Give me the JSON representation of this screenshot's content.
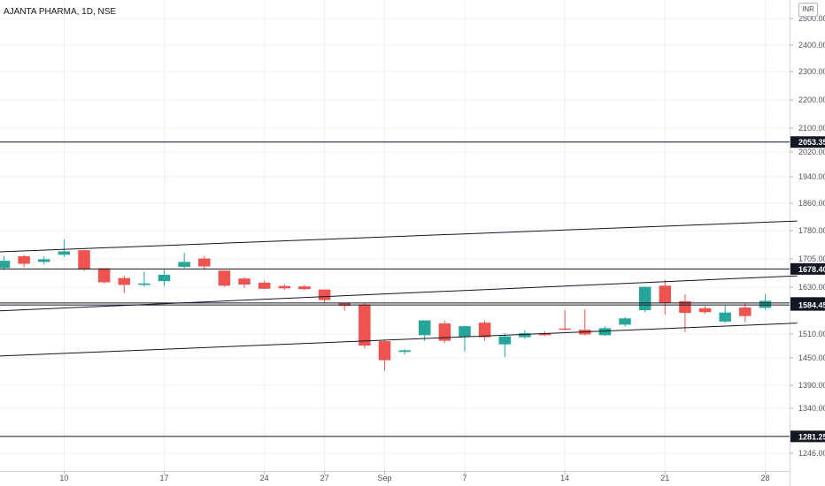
{
  "header": {
    "title": "AJANTA PHARMA, 1D, NSE",
    "currency": "INR"
  },
  "colors": {
    "up": "#26a69a",
    "down": "#ef5350",
    "grid": "#eef0f3",
    "line": "#131722"
  },
  "chart_data": {
    "type": "candlestick",
    "title": "AJANTA PHARMA, 1D, NSE",
    "currency": "INR",
    "ylim": [
      1215,
      2545
    ],
    "y_ticks": [
      2500,
      2400,
      2300,
      2200,
      2100,
      2020,
      1940,
      1860,
      1780,
      1705,
      1630,
      1510,
      1450,
      1390,
      1340,
      1246
    ],
    "y_tick_labels": [
      "2500.00",
      "2400.00",
      "2300.00",
      "2200.00",
      "2100.00",
      "2020.00",
      "1940.00",
      "1860.00",
      "1780.00",
      "1705.00",
      "1630.00",
      "1510.00",
      "1450.00",
      "1390.00",
      "1340.00",
      "1246.00"
    ],
    "x_ticks": [
      {
        "i": 3,
        "label": "10"
      },
      {
        "i": 8,
        "label": "17"
      },
      {
        "i": 13,
        "label": "24"
      },
      {
        "i": 16,
        "label": "27"
      },
      {
        "i": 19,
        "label": "Sep"
      },
      {
        "i": 23,
        "label": "7"
      },
      {
        "i": 28,
        "label": "14"
      },
      {
        "i": 33,
        "label": "21"
      },
      {
        "i": 38,
        "label": "28"
      }
    ],
    "candles": [
      {
        "o": 1681,
        "h": 1712,
        "l": 1675,
        "c": 1700
      },
      {
        "o": 1712,
        "h": 1716,
        "l": 1683,
        "c": 1692
      },
      {
        "o": 1697,
        "h": 1712,
        "l": 1690,
        "c": 1704
      },
      {
        "o": 1716,
        "h": 1757,
        "l": 1710,
        "c": 1725
      },
      {
        "o": 1728,
        "h": 1728,
        "l": 1673,
        "c": 1677
      },
      {
        "o": 1680,
        "h": 1680,
        "l": 1640,
        "c": 1643
      },
      {
        "o": 1654,
        "h": 1660,
        "l": 1615,
        "c": 1636
      },
      {
        "o": 1636,
        "h": 1671,
        "l": 1632,
        "c": 1640
      },
      {
        "o": 1646,
        "h": 1676,
        "l": 1633,
        "c": 1663
      },
      {
        "o": 1684,
        "h": 1721,
        "l": 1680,
        "c": 1697
      },
      {
        "o": 1706,
        "h": 1713,
        "l": 1676,
        "c": 1685
      },
      {
        "o": 1674,
        "h": 1674,
        "l": 1631,
        "c": 1634
      },
      {
        "o": 1653,
        "h": 1656,
        "l": 1628,
        "c": 1637
      },
      {
        "o": 1642,
        "h": 1647,
        "l": 1625,
        "c": 1626
      },
      {
        "o": 1633,
        "h": 1637,
        "l": 1623,
        "c": 1627
      },
      {
        "o": 1632,
        "h": 1636,
        "l": 1622,
        "c": 1625
      },
      {
        "o": 1624,
        "h": 1624,
        "l": 1590,
        "c": 1597
      },
      {
        "o": 1590,
        "h": 1590,
        "l": 1570,
        "c": 1582
      },
      {
        "o": 1586,
        "h": 1590,
        "l": 1474,
        "c": 1481
      },
      {
        "o": 1492,
        "h": 1496,
        "l": 1422,
        "c": 1445
      },
      {
        "o": 1465,
        "h": 1472,
        "l": 1458,
        "c": 1469
      },
      {
        "o": 1507,
        "h": 1537,
        "l": 1492,
        "c": 1545
      },
      {
        "o": 1537,
        "h": 1544,
        "l": 1488,
        "c": 1493
      },
      {
        "o": 1503,
        "h": 1532,
        "l": 1466,
        "c": 1530
      },
      {
        "o": 1539,
        "h": 1545,
        "l": 1493,
        "c": 1502
      },
      {
        "o": 1484,
        "h": 1512,
        "l": 1452,
        "c": 1504
      },
      {
        "o": 1502,
        "h": 1520,
        "l": 1498,
        "c": 1512
      },
      {
        "o": 1512,
        "h": 1517,
        "l": 1505,
        "c": 1507
      },
      {
        "o": 1524,
        "h": 1571,
        "l": 1519,
        "c": 1521
      },
      {
        "o": 1521,
        "h": 1573,
        "l": 1506,
        "c": 1509
      },
      {
        "o": 1507,
        "h": 1530,
        "l": 1505,
        "c": 1525
      },
      {
        "o": 1534,
        "h": 1553,
        "l": 1529,
        "c": 1550
      },
      {
        "o": 1571,
        "h": 1620,
        "l": 1566,
        "c": 1631
      },
      {
        "o": 1634,
        "h": 1650,
        "l": 1560,
        "c": 1590
      },
      {
        "o": 1594,
        "h": 1612,
        "l": 1515,
        "c": 1564
      },
      {
        "o": 1576,
        "h": 1582,
        "l": 1562,
        "c": 1566
      },
      {
        "o": 1542,
        "h": 1583,
        "l": 1538,
        "c": 1565
      },
      {
        "o": 1578,
        "h": 1590,
        "l": 1540,
        "c": 1556
      },
      {
        "o": 1577,
        "h": 1612,
        "l": 1572,
        "c": 1595
      }
    ],
    "horizontal_lines": [
      {
        "value": 2053.35,
        "label": "2053.35"
      },
      {
        "value": 1678.4,
        "label": "1678.40"
      },
      {
        "value": 1589.6,
        "label": "1589.60"
      },
      {
        "value": 1584.45,
        "label": "1584.45"
      },
      {
        "value": 1281.25,
        "label": "1281.25"
      }
    ],
    "trend_lines": [
      {
        "from": {
          "i": -3,
          "v": 1718
        },
        "to": {
          "i": 39.6,
          "v": 1808
        }
      },
      {
        "from": {
          "i": -3,
          "v": 1563
        },
        "to": {
          "i": 39.6,
          "v": 1660
        }
      },
      {
        "from": {
          "i": -3,
          "v": 1449
        },
        "to": {
          "i": 39.6,
          "v": 1538
        }
      }
    ]
  }
}
